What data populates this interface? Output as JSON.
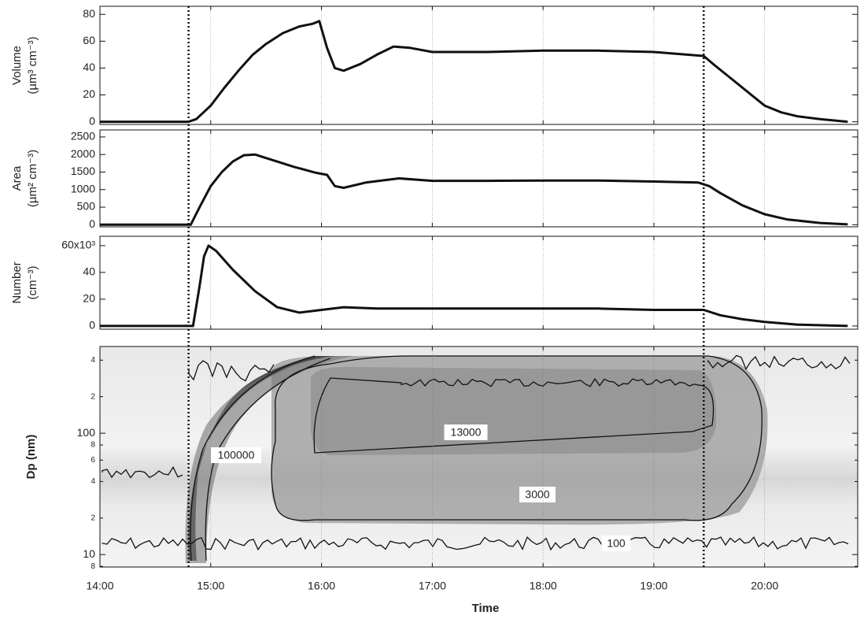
{
  "chart_data": [
    {
      "type": "line",
      "ylabel": [
        "Volume",
        "(µm³ cm⁻³)"
      ],
      "xlim": [
        14,
        20.84
      ],
      "ylim": [
        -2,
        86
      ],
      "yticks": [
        0,
        20,
        40,
        60,
        80
      ],
      "series": [
        {
          "color": "#111111",
          "x": [
            14,
            14.8,
            14.87,
            15,
            15.12,
            15.25,
            15.38,
            15.5,
            15.65,
            15.8,
            15.92,
            15.98,
            16.05,
            16.12,
            16.2,
            16.35,
            16.5,
            16.65,
            16.8,
            17,
            17.5,
            18,
            18.5,
            19,
            19.3,
            19.45,
            19.55,
            19.7,
            19.85,
            20,
            20.15,
            20.3,
            20.5,
            20.75
          ],
          "values": [
            0,
            0,
            2,
            12,
            25,
            38,
            50,
            58,
            66,
            71,
            73,
            75,
            55,
            40,
            38,
            43,
            50,
            56,
            55,
            52,
            52,
            53,
            53,
            52,
            50,
            49,
            42,
            32,
            22,
            12,
            7,
            4,
            2,
            0
          ]
        }
      ]
    },
    {
      "type": "line",
      "ylabel": [
        "Area",
        "(µm² cm⁻³)"
      ],
      "xlim": [
        14,
        20.84
      ],
      "ylim": [
        -60,
        2700
      ],
      "yticks": [
        0,
        500,
        1000,
        1500,
        2000,
        2500
      ],
      "series": [
        {
          "color": "#111111",
          "x": [
            14,
            14.82,
            14.9,
            15,
            15.1,
            15.2,
            15.3,
            15.4,
            15.5,
            15.75,
            15.95,
            16.05,
            16.12,
            16.2,
            16.4,
            16.7,
            17,
            17.5,
            18,
            18.5,
            19,
            19.4,
            19.5,
            19.6,
            19.8,
            20,
            20.2,
            20.5,
            20.75
          ],
          "values": [
            0,
            0,
            500,
            1100,
            1500,
            1800,
            1980,
            2000,
            1900,
            1650,
            1480,
            1420,
            1100,
            1050,
            1200,
            1320,
            1250,
            1250,
            1260,
            1260,
            1230,
            1200,
            1100,
            900,
            550,
            300,
            150,
            50,
            10
          ]
        }
      ]
    },
    {
      "type": "line",
      "ylabel": [
        "Number",
        "(cm⁻³)"
      ],
      "xlim": [
        14,
        20.84
      ],
      "ylim": [
        -2.4,
        67
      ],
      "yticks": [
        0,
        20,
        40,
        {
          "value": 60,
          "label": "60x10³"
        }
      ],
      "series": [
        {
          "color": "#111111",
          "x": [
            14,
            14.84,
            14.9,
            14.94,
            14.98,
            15.05,
            15.2,
            15.4,
            15.6,
            15.8,
            16,
            16.2,
            16.5,
            17,
            17.5,
            18,
            18.5,
            19,
            19.45,
            19.6,
            19.8,
            20,
            20.3,
            20.75
          ],
          "values": [
            0,
            0,
            30,
            52,
            60,
            56,
            42,
            26,
            14,
            10,
            12,
            14,
            13,
            13,
            13,
            13,
            13,
            12,
            12,
            8,
            5,
            3,
            1,
            0
          ]
        }
      ]
    },
    {
      "type": "contour",
      "ylabel": "Dp (nm)",
      "xlabel": "Time",
      "xlim": [
        14,
        20.84
      ],
      "ylim": [
        7.9,
        518
      ],
      "log_y": true,
      "yticks": [
        8,
        10,
        {
          "value": 20,
          "label": "2"
        },
        {
          "value": 40,
          "label": "4"
        },
        {
          "value": 60,
          "label": "6"
        },
        {
          "value": 80,
          "label": "8"
        },
        100,
        {
          "value": 200,
          "label": "2"
        },
        {
          "value": 400,
          "label": "4"
        }
      ],
      "xticks": [
        {
          "value": 14,
          "label": "14:00"
        },
        {
          "value": 15,
          "label": "15:00"
        },
        {
          "value": 16,
          "label": "16:00"
        },
        {
          "value": 17,
          "label": "17:00"
        },
        {
          "value": 18,
          "label": "18:00"
        },
        {
          "value": 19,
          "label": "19:00"
        },
        {
          "value": 20,
          "label": "20:00"
        }
      ],
      "event_lines": [
        14.8,
        19.45
      ],
      "contour_labels": [
        "100000",
        "13000",
        "3000",
        "100"
      ]
    }
  ]
}
